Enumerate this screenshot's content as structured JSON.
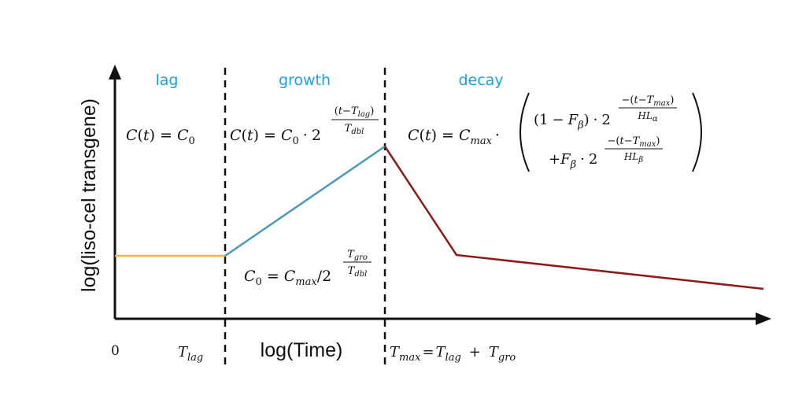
{
  "colors": {
    "lag_line": "#f5b731",
    "growth_line": "#4a98bb",
    "decay_line": "#8c1a16",
    "phase_label": "#1aa3df",
    "axis": "#111111"
  },
  "axes": {
    "y_label": "log(liso-cel transgene)",
    "x_label": "log(Time)"
  },
  "phases": {
    "lag": "lag",
    "growth": "growth",
    "decay": "decay"
  },
  "x_ticks": {
    "origin": "0",
    "t": "T",
    "lag_sub": "lag",
    "max_sub": "max",
    "gro_sub": "gro",
    "eq": "=",
    "plus": "+"
  },
  "eq": {
    "C": "C",
    "t": "t",
    "lparen": "(",
    "rparen": ")",
    "equals": "=",
    "zero": "0",
    "max": "max",
    "dot": "·",
    "two": "2",
    "slash": "/",
    "one": "1",
    "minus": "−",
    "neg_paren_open": "−(",
    "plus": "+",
    "F": "F",
    "beta": "β",
    "HL": "HL",
    "alpha": "α",
    "T": "T",
    "lag": "lag",
    "dbl": "dbl",
    "gro": "gro"
  }
}
